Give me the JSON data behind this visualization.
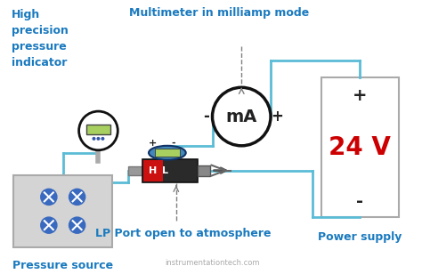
{
  "bg_color": "#ffffff",
  "text_color_blue": "#1a7abf",
  "text_color_red": "#cc0000",
  "text_color_black": "#222222",
  "text_color_gray": "#888888",
  "wire_color": "#5bbcd6",
  "title_top_left": "High\nprecision\npressure\nindicator",
  "title_top_center": "Multimeter in milliamp mode",
  "label_power": "Power supply",
  "label_pressure": "Pressure source",
  "label_lp": "LP Port open to atmosphere",
  "label_24v": "24 V",
  "label_mA": "mA",
  "watermark": "instrumentationtech.com",
  "plus_sign": "+",
  "minus_sign": "-"
}
